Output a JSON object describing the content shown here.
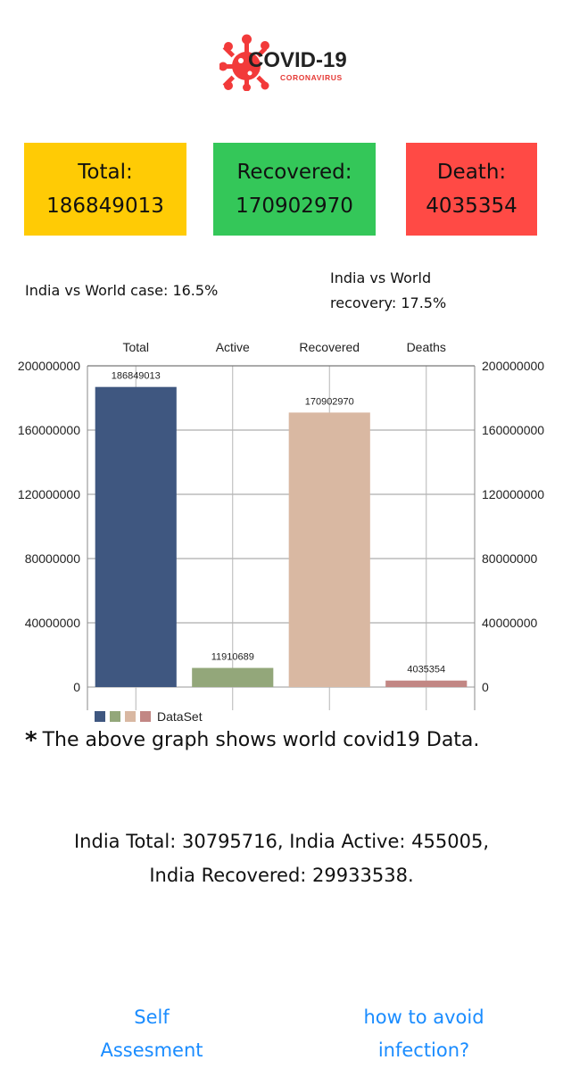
{
  "logo": {
    "title": "COVID-19",
    "subtitle": "CORONAVIRUS",
    "icon": "virus-icon",
    "colors": {
      "virus": "#f23a3a",
      "subtitle": "#e53935"
    }
  },
  "stats": {
    "total": {
      "label": "Total:",
      "value": "186849013",
      "color": "#ffcb05"
    },
    "recovered": {
      "label": "Recovered:",
      "value": "170902970",
      "color": "#34c759"
    },
    "death": {
      "label": "Death:",
      "value": "4035354",
      "color": "#ff4a45"
    }
  },
  "ratios": {
    "case": "India vs World case: 16.5%",
    "recovery_line1": "India vs World",
    "recovery_line2": "recovery: 17.5%"
  },
  "chart_data": {
    "type": "bar",
    "categories": [
      "Total",
      "Active",
      "Recovered",
      "Deaths"
    ],
    "values": [
      186849013,
      11910689,
      170902970,
      4035354
    ],
    "value_labels": [
      "186849013",
      "11910689",
      "170902970",
      "4035354"
    ],
    "colors": [
      "#3f5780",
      "#93a77a",
      "#d9b8a2",
      "#c28784"
    ],
    "yticks": [
      0,
      40000000,
      80000000,
      120000000,
      160000000,
      200000000
    ],
    "ytick_labels": [
      "0",
      "40000000",
      "80000000",
      "120000000",
      "160000000",
      "200000000"
    ],
    "ylim": [
      0,
      200000000
    ],
    "x_axis_position": "top",
    "y_axis": "both-sides",
    "grid": true,
    "legend": {
      "label": "DataSet",
      "position": "bottom-left"
    }
  },
  "caption": {
    "star": "*",
    "text": "The above graph shows world covid19 Data."
  },
  "india": {
    "line1": "India Total: 30795716, India  Active: 455005,",
    "line2": "India  Recovered: 29933538."
  },
  "links": {
    "self_line1": "Self",
    "self_line2": "Assesment",
    "avoid_line1": "how to avoid",
    "avoid_line2": "infection?",
    "color": "#1a8cff"
  }
}
